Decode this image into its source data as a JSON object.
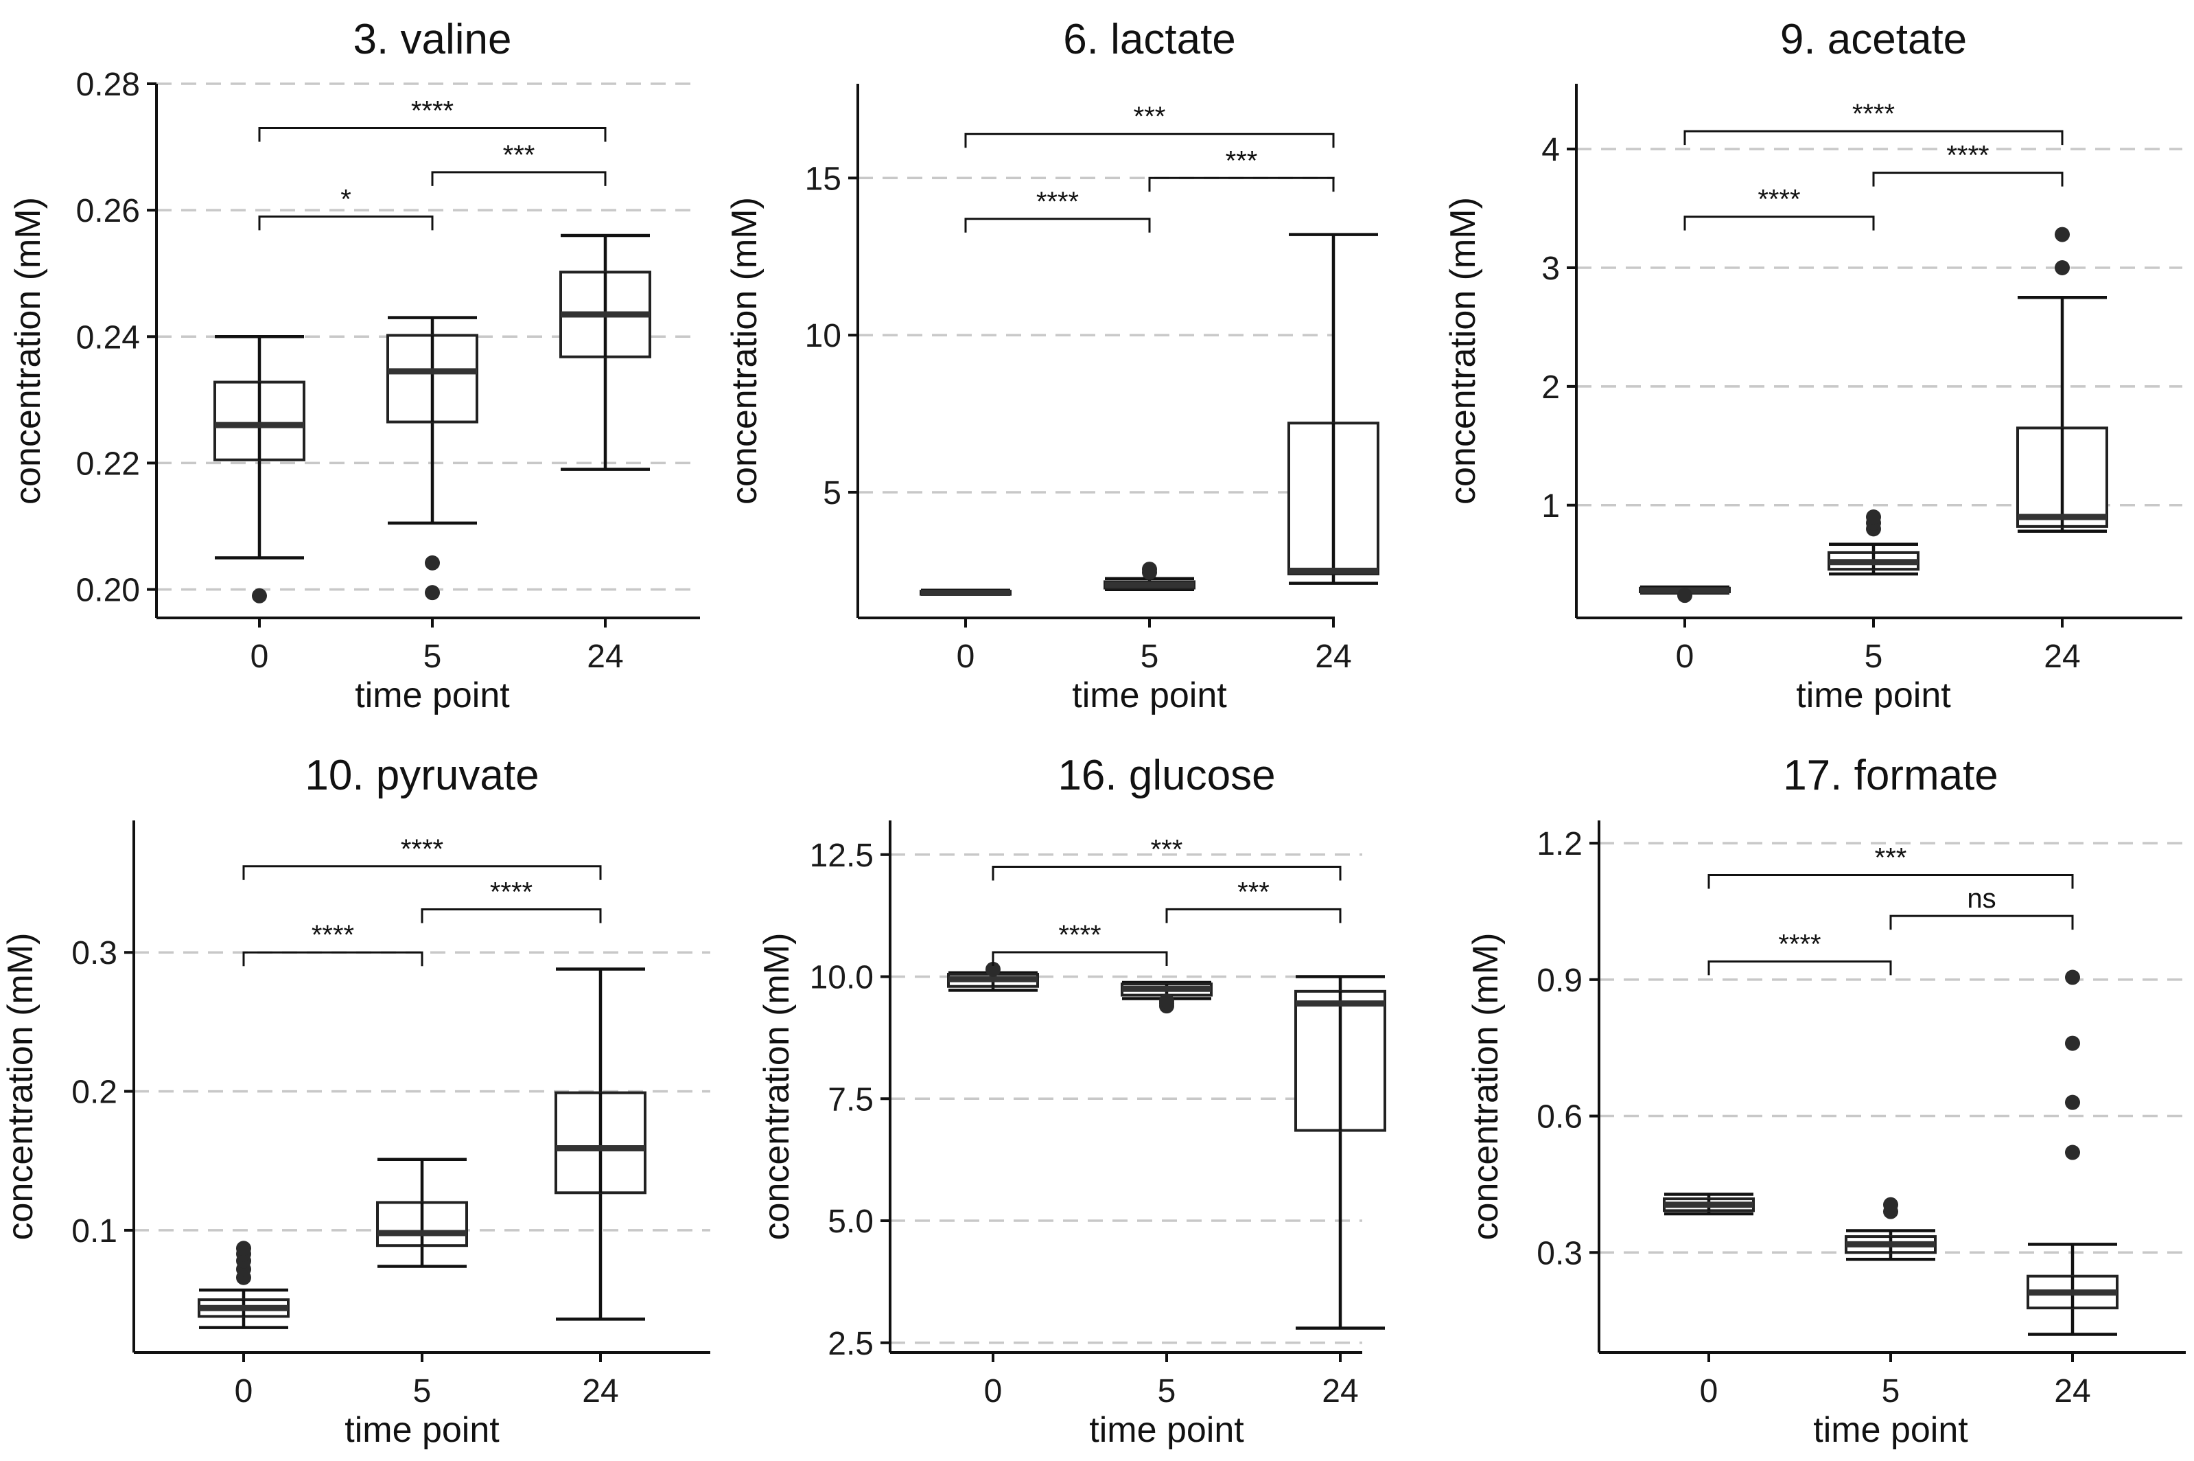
{
  "colors": {
    "ink": "#111111",
    "grid": "#c8c8c8",
    "outlier": "#2b2b2b",
    "background": "#ffffff"
  },
  "chart_data": [
    {
      "type": "box",
      "title": "3. valine",
      "xlabel": "time point",
      "ylabel": "concentration (mM)",
      "categories": [
        "0",
        "5",
        "24"
      ],
      "yticks": [
        "0.20",
        "0.22",
        "0.24",
        "0.26",
        "0.28"
      ],
      "ylim": [
        0.1955,
        0.28
      ],
      "boxes": [
        {
          "x": "0",
          "low": 0.205,
          "q1": 0.2205,
          "median": 0.226,
          "q3": 0.2328,
          "high": 0.24,
          "outliers": [
            0.199
          ]
        },
        {
          "x": "5",
          "low": 0.2105,
          "q1": 0.2265,
          "median": 0.2345,
          "q3": 0.2402,
          "high": 0.243,
          "outliers": [
            0.2042,
            0.1995
          ]
        },
        {
          "x": "24",
          "low": 0.219,
          "q1": 0.2368,
          "median": 0.2435,
          "q3": 0.2502,
          "high": 0.256,
          "outliers": []
        }
      ],
      "comparisons": [
        {
          "from": "0",
          "to": "24",
          "label": "****",
          "y": 0.273
        },
        {
          "from": "5",
          "to": "24",
          "label": "***",
          "y": 0.266
        },
        {
          "from": "0",
          "to": "5",
          "label": "*",
          "y": 0.259
        }
      ]
    },
    {
      "type": "box",
      "title": "6. lactate",
      "xlabel": "time point",
      "ylabel": "concentration (mM)",
      "categories": [
        "0",
        "5",
        "24"
      ],
      "yticks": [
        "5",
        "10",
        "15"
      ],
      "ylim": [
        1.0,
        18.0
      ],
      "boxes": [
        {
          "x": "0",
          "low": 1.75,
          "q1": 1.75,
          "median": 1.8,
          "q3": 1.85,
          "high": 1.88,
          "outliers": []
        },
        {
          "x": "5",
          "low": 1.9,
          "q1": 1.95,
          "median": 2.05,
          "q3": 2.15,
          "high": 2.25,
          "outliers": [
            2.45,
            2.55
          ]
        },
        {
          "x": "24",
          "low": 2.1,
          "q1": 2.4,
          "median": 2.5,
          "q3": 7.2,
          "high": 13.2,
          "outliers": []
        }
      ],
      "comparisons": [
        {
          "from": "0",
          "to": "24",
          "label": "***",
          "y": 16.4
        },
        {
          "from": "5",
          "to": "24",
          "label": "***",
          "y": 15.0
        },
        {
          "from": "0",
          "to": "5",
          "label": "****",
          "y": 13.7
        }
      ]
    },
    {
      "type": "box",
      "title": "9. acetate",
      "xlabel": "time point",
      "ylabel": "concentration (mM)",
      "categories": [
        "0",
        "5",
        "24"
      ],
      "yticks": [
        "1",
        "2",
        "3",
        "4"
      ],
      "ylim": [
        0.05,
        4.55
      ],
      "boxes": [
        {
          "x": "0",
          "low": 0.26,
          "q1": 0.27,
          "median": 0.28,
          "q3": 0.3,
          "high": 0.31,
          "outliers": [
            0.24
          ]
        },
        {
          "x": "5",
          "low": 0.42,
          "q1": 0.46,
          "median": 0.52,
          "q3": 0.6,
          "high": 0.67,
          "outliers": [
            0.8,
            0.85,
            0.9
          ]
        },
        {
          "x": "24",
          "low": 0.78,
          "q1": 0.82,
          "median": 0.9,
          "q3": 1.65,
          "high": 2.75,
          "outliers": [
            3.0,
            3.28
          ]
        }
      ],
      "comparisons": [
        {
          "from": "0",
          "to": "24",
          "label": "****",
          "y": 4.15
        },
        {
          "from": "5",
          "to": "24",
          "label": "****",
          "y": 3.8
        },
        {
          "from": "0",
          "to": "5",
          "label": "****",
          "y": 3.43
        }
      ]
    },
    {
      "type": "box",
      "title": "10. pyruvate",
      "xlabel": "time point",
      "ylabel": "concentration (mM)",
      "categories": [
        "0",
        "5",
        "24"
      ],
      "yticks": [
        "0.1",
        "0.2",
        "0.3"
      ],
      "ylim": [
        0.012,
        0.395
      ],
      "boxes": [
        {
          "x": "0",
          "low": 0.03,
          "q1": 0.038,
          "median": 0.044,
          "q3": 0.05,
          "high": 0.057,
          "outliers": [
            0.066,
            0.072,
            0.078,
            0.083,
            0.087
          ]
        },
        {
          "x": "5",
          "low": 0.074,
          "q1": 0.089,
          "median": 0.098,
          "q3": 0.12,
          "high": 0.151,
          "outliers": []
        },
        {
          "x": "24",
          "low": 0.036,
          "q1": 0.127,
          "median": 0.159,
          "q3": 0.199,
          "high": 0.288,
          "outliers": []
        }
      ],
      "comparisons": [
        {
          "from": "0",
          "to": "24",
          "label": "****",
          "y": 0.362
        },
        {
          "from": "5",
          "to": "24",
          "label": "****",
          "y": 0.331
        },
        {
          "from": "0",
          "to": "5",
          "label": "****",
          "y": 0.3
        }
      ]
    },
    {
      "type": "box",
      "title": "16. glucose",
      "xlabel": "time point",
      "ylabel": "concentration (mM)",
      "categories": [
        "0",
        "5",
        "24"
      ],
      "yticks": [
        "2.5",
        "5.0",
        "7.5",
        "10.0",
        "12.5"
      ],
      "ylim": [
        2.3,
        13.2
      ],
      "boxes": [
        {
          "x": "0",
          "low": 9.72,
          "q1": 9.8,
          "median": 9.95,
          "q3": 10.05,
          "high": 10.08,
          "outliers": [
            10.15
          ]
        },
        {
          "x": "5",
          "low": 9.55,
          "q1": 9.62,
          "median": 9.75,
          "q3": 9.85,
          "high": 9.88,
          "outliers": [
            9.4,
            9.45,
            9.5
          ]
        },
        {
          "x": "24",
          "low": 2.8,
          "q1": 6.85,
          "median": 9.45,
          "q3": 9.7,
          "high": 10.0,
          "outliers": []
        }
      ],
      "comparisons": [
        {
          "from": "0",
          "to": "24",
          "label": "***",
          "y": 12.25
        },
        {
          "from": "5",
          "to": "24",
          "label": "***",
          "y": 11.38
        },
        {
          "from": "0",
          "to": "5",
          "label": "****",
          "y": 10.5
        }
      ]
    },
    {
      "type": "box",
      "title": "17. formate",
      "xlabel": "time point",
      "ylabel": "concentration (mM)",
      "categories": [
        "0",
        "5",
        "24"
      ],
      "yticks": [
        "0.3",
        "0.6",
        "0.9",
        "1.2"
      ],
      "ylim": [
        0.08,
        1.25
      ],
      "boxes": [
        {
          "x": "0",
          "low": 0.385,
          "q1": 0.392,
          "median": 0.405,
          "q3": 0.418,
          "high": 0.428,
          "outliers": []
        },
        {
          "x": "5",
          "low": 0.285,
          "q1": 0.3,
          "median": 0.318,
          "q3": 0.335,
          "high": 0.348,
          "outliers": [
            0.39,
            0.405
          ]
        },
        {
          "x": "24",
          "low": 0.12,
          "q1": 0.178,
          "median": 0.212,
          "q3": 0.248,
          "high": 0.318,
          "outliers": [
            0.52,
            0.63,
            0.76,
            0.905
          ]
        }
      ],
      "comparisons": [
        {
          "from": "0",
          "to": "24",
          "label": "***",
          "y": 1.13
        },
        {
          "from": "5",
          "to": "24",
          "label": "ns",
          "y": 1.04
        },
        {
          "from": "0",
          "to": "5",
          "label": "****",
          "y": 0.94
        }
      ]
    }
  ]
}
